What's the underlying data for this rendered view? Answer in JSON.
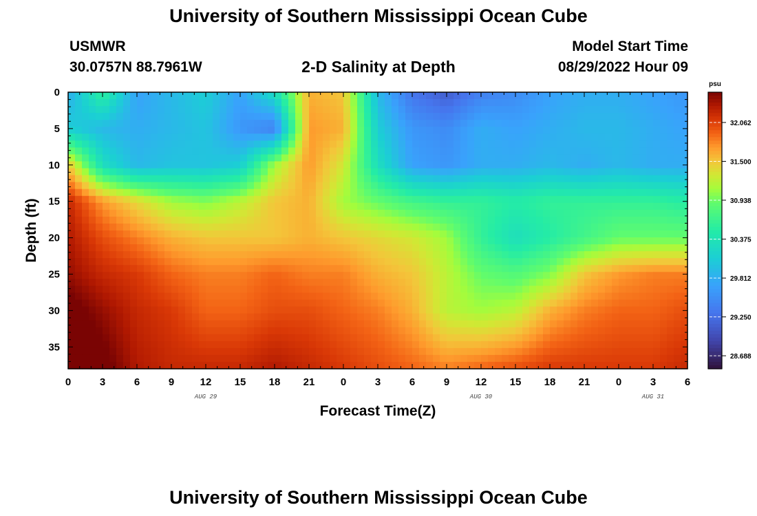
{
  "page": {
    "title": "University of Southern Mississippi Ocean Cube",
    "station_id": "USMWR",
    "station_coords": "30.0757N  88.7961W",
    "subtitle": "2-D Salinity at Depth",
    "model_start_label": "Model Start Time",
    "model_start_value": "08/29/2022 Hour 09",
    "footer_title": "University of Southern Mississippi Ocean Cube"
  },
  "chart_data": {
    "type": "heatmap",
    "title": "2-D Salinity at Depth",
    "xlabel": "Forecast Time(Z)",
    "ylabel": "Depth (ft)",
    "x_hours": [
      0,
      3,
      6,
      9,
      12,
      15,
      18,
      21,
      24,
      27,
      30,
      33,
      36,
      39,
      42,
      45,
      48,
      51,
      54
    ],
    "x_tick_labels": [
      "0",
      "3",
      "6",
      "9",
      "12",
      "15",
      "18",
      "21",
      "0",
      "3",
      "6",
      "9",
      "12",
      "15",
      "18",
      "21",
      "0",
      "3",
      "6"
    ],
    "date_labels": [
      {
        "label": "AUG 29",
        "hour": 12
      },
      {
        "label": "AUG 30",
        "hour": 36
      },
      {
        "label": "AUG 31",
        "hour": 51
      }
    ],
    "xlim": [
      0,
      54
    ],
    "y_depths": [
      0,
      5,
      10,
      15,
      20,
      25,
      30,
      35
    ],
    "y_tick_labels": [
      "0",
      "5",
      "10",
      "15",
      "20",
      "25",
      "30",
      "35"
    ],
    "ylim": [
      0,
      38
    ],
    "y_inverted": true,
    "colorbar": {
      "unit": "psu",
      "vmin": 28.5,
      "vmax": 32.5,
      "ticks": [
        32.062,
        31.5,
        30.938,
        30.375,
        29.812,
        29.25,
        28.688
      ],
      "tick_labels": [
        "32.062",
        "31.500",
        "30.938",
        "30.375",
        "29.812",
        "29.250",
        "28.688"
      ]
    },
    "grid_depths": [
      0,
      5,
      10,
      15,
      20,
      25,
      30,
      38
    ],
    "salinity_psu": [
      [
        29.8,
        30.6,
        29.7,
        29.9,
        30.1,
        29.7,
        30.3,
        31.6,
        31.5,
        29.9,
        29.3,
        29.1,
        29.4,
        29.5,
        29.7,
        29.8,
        29.8,
        29.7,
        29.6
      ],
      [
        30.1,
        29.9,
        29.8,
        29.9,
        30.0,
        29.6,
        29.4,
        31.7,
        31.6,
        30.1,
        29.6,
        29.5,
        29.8,
        29.7,
        29.8,
        29.9,
        29.9,
        29.8,
        29.7
      ],
      [
        31.5,
        30.3,
        29.9,
        30.0,
        30.0,
        30.1,
        31.1,
        31.7,
        31.3,
        30.3,
        29.7,
        29.6,
        29.8,
        29.8,
        29.9,
        29.8,
        29.9,
        29.8,
        29.8
      ],
      [
        32.2,
        31.7,
        31.4,
        31.1,
        31.0,
        31.2,
        31.5,
        31.6,
        31.1,
        30.9,
        30.7,
        30.6,
        30.6,
        30.5,
        30.6,
        30.6,
        30.6,
        30.6,
        30.5
      ],
      [
        32.3,
        32.0,
        31.8,
        31.6,
        31.5,
        31.5,
        31.5,
        31.6,
        31.5,
        31.4,
        31.3,
        31.1,
        30.6,
        30.3,
        30.5,
        30.7,
        30.9,
        30.9,
        30.9
      ],
      [
        32.4,
        32.2,
        32.1,
        31.9,
        31.8,
        31.8,
        31.9,
        31.8,
        31.8,
        31.6,
        31.5,
        31.2,
        30.9,
        30.8,
        31.0,
        31.5,
        31.7,
        31.8,
        31.8
      ],
      [
        32.6,
        32.4,
        32.2,
        32.1,
        31.9,
        31.9,
        32.0,
        32.0,
        31.9,
        31.8,
        31.6,
        31.2,
        31.1,
        31.2,
        31.6,
        31.8,
        31.9,
        31.9,
        32.0
      ],
      [
        32.8,
        32.6,
        32.3,
        32.2,
        32.2,
        32.2,
        32.3,
        32.2,
        32.1,
        32.0,
        31.9,
        31.8,
        31.9,
        32.0,
        32.1,
        32.1,
        32.1,
        32.1,
        32.2
      ]
    ]
  }
}
